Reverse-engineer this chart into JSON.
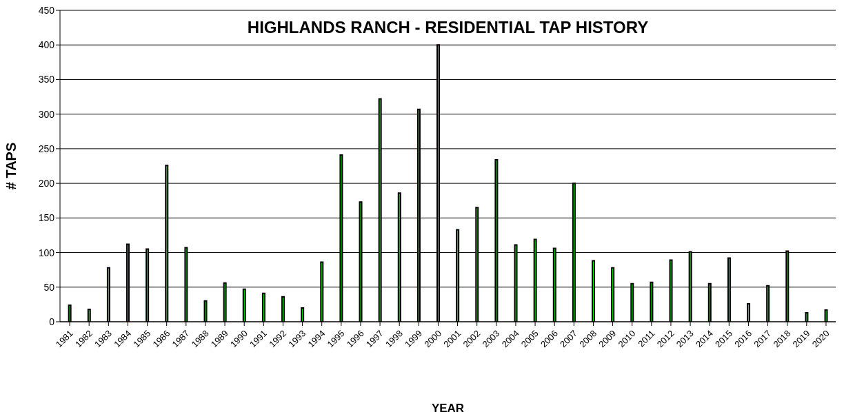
{
  "chart_data": {
    "type": "bar",
    "title": "HIGHLANDS RANCH - RESIDENTIAL TAP HISTORY",
    "xlabel": "YEAR",
    "ylabel": "# TAPS",
    "categories": [
      "1981",
      "1982",
      "1983",
      "1984",
      "1985",
      "1986",
      "1987",
      "1988",
      "1989",
      "1990",
      "1991",
      "1992",
      "1993",
      "1994",
      "1995",
      "1996",
      "1997",
      "1998",
      "1999",
      "2000",
      "2001",
      "2002",
      "2003",
      "2004",
      "2005",
      "2006",
      "2007",
      "2008",
      "2009",
      "2010",
      "2011",
      "2012",
      "2013",
      "2014",
      "2015",
      "2016",
      "2017",
      "2018",
      "2019",
      "2020"
    ],
    "values": [
      24,
      18,
      78,
      112,
      105,
      226,
      107,
      30,
      56,
      47,
      41,
      36,
      20,
      86,
      241,
      173,
      322,
      186,
      307,
      400,
      133,
      165,
      234,
      111,
      119,
      106,
      200,
      88,
      78,
      55,
      57,
      89,
      101,
      55,
      92,
      26,
      52,
      102,
      13,
      17
    ],
    "color": "#00ff00",
    "ylim": [
      0,
      450
    ],
    "yticks": [
      0,
      50,
      100,
      150,
      200,
      250,
      300,
      350,
      400,
      450
    ],
    "grid": "y"
  }
}
